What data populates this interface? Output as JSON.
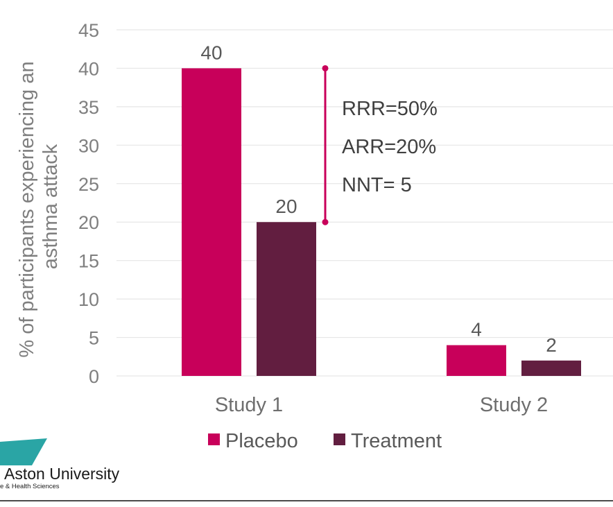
{
  "chart_data": {
    "type": "bar",
    "title": "",
    "xlabel": "",
    "ylabel": "% of participants experiencing an asthma attack",
    "ylabel_lines": [
      "% of participants experiencing an",
      "asthma attack"
    ],
    "ylim": [
      0,
      45
    ],
    "yticks": [
      0,
      5,
      10,
      15,
      20,
      25,
      30,
      35,
      40,
      45
    ],
    "grid": true,
    "categories": [
      "Study 1",
      "Study 2"
    ],
    "series": [
      {
        "name": "Placebo",
        "values": [
          40,
          4
        ],
        "color": "#c8005a"
      },
      {
        "name": "Treatment",
        "values": [
          20,
          2
        ],
        "color": "#621e40"
      }
    ],
    "legend_position": "bottom",
    "bracket": {
      "category": "Study 1",
      "from": 40,
      "to": 20,
      "color": "#c8005a"
    },
    "annotations": [
      "RRR=50%",
      "ARR=20%",
      "NNT= 5"
    ]
  },
  "logo": {
    "name": "Aston University",
    "subtitle": "e & Health Sciences",
    "color": "#2aa5a5"
  }
}
